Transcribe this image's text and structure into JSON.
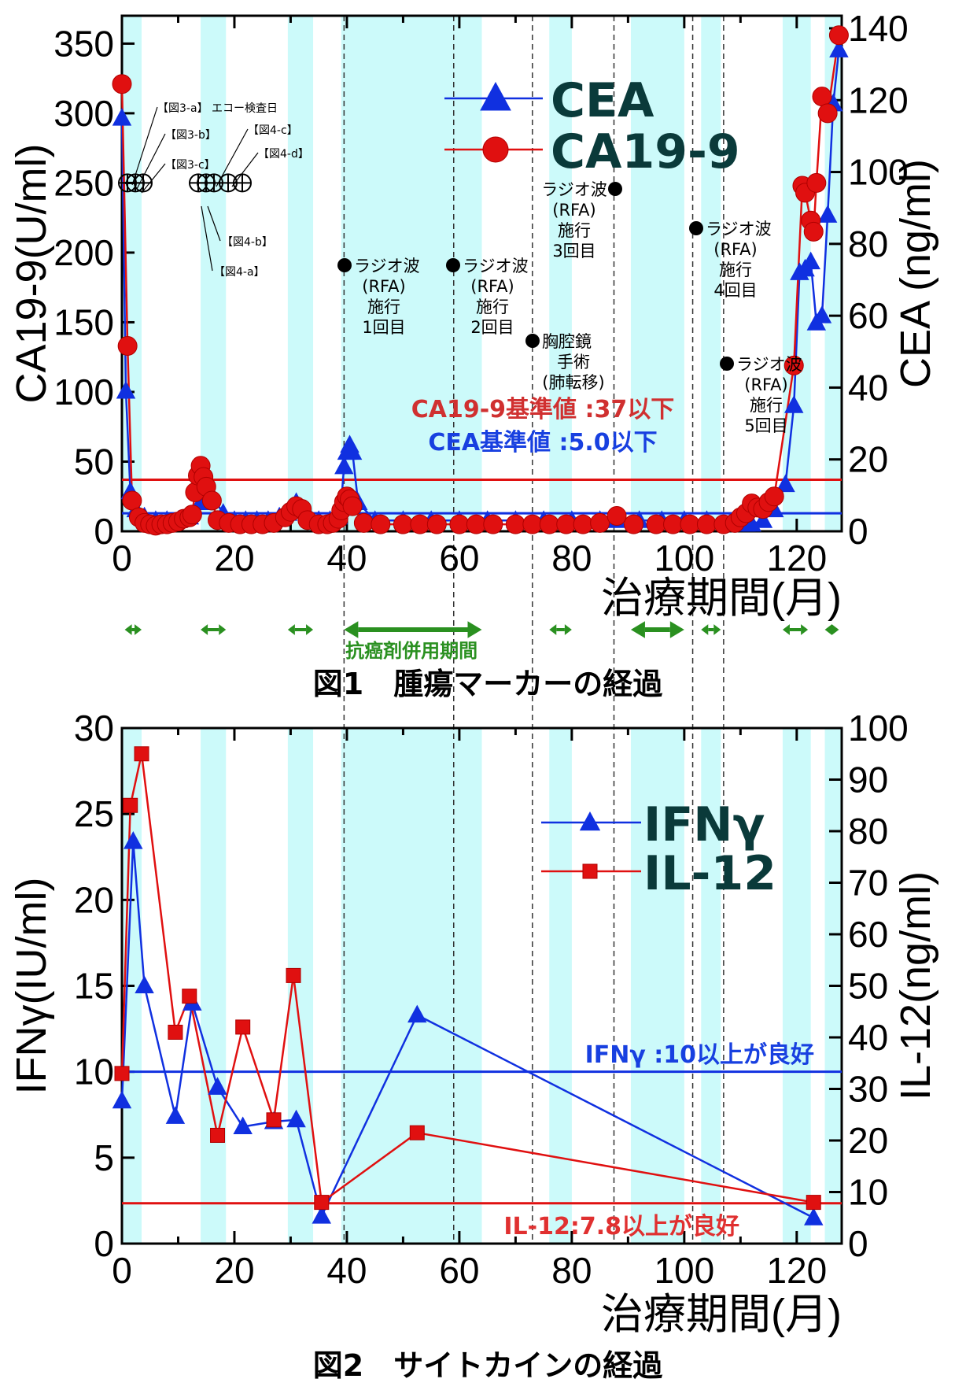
{
  "chart_data": [
    {
      "type": "line",
      "title": "図1　腫瘍マーカーの経過",
      "xlabel": "治療期間(月)",
      "ylabel_left": "CA19-9(U/ml)",
      "ylabel_right": "CEA (ng/ml)",
      "xlim": [
        0,
        128
      ],
      "ylim_left": [
        0,
        370
      ],
      "ylim_right": [
        0,
        143.5
      ],
      "x_ticks": [
        0,
        20,
        40,
        60,
        80,
        100,
        120
      ],
      "y_left_ticks": [
        0,
        50,
        100,
        150,
        200,
        250,
        300,
        350
      ],
      "y_right_ticks": [
        0,
        20,
        40,
        60,
        80,
        100,
        120,
        140
      ],
      "legend": [
        "CEA",
        "CA19-9"
      ],
      "series": [
        {
          "name": "CEA",
          "axis": "right",
          "color": "#1030e0",
          "marker": "triangle",
          "x": [
            0,
            0.7,
            1.5,
            2.5,
            4,
            6,
            8,
            10,
            12,
            14,
            15,
            16,
            18,
            20,
            22,
            24,
            26,
            28,
            29.5,
            31,
            33,
            35,
            37,
            38.5,
            39,
            39.5,
            40,
            40.5,
            41,
            42,
            45,
            50,
            55,
            60,
            65,
            70,
            75,
            80,
            85,
            88,
            92,
            96,
            100,
            104,
            108,
            111,
            112,
            114,
            116,
            118,
            119.5,
            120.5,
            121.5,
            122.5,
            123.5,
            124.5,
            125.5,
            126.5,
            127.5
          ],
          "y": [
            115,
            39,
            11,
            6,
            4,
            3,
            3,
            3,
            4,
            8,
            11,
            10,
            5,
            3,
            3,
            3,
            3,
            4,
            5,
            8,
            5,
            3,
            3,
            4,
            8,
            18,
            22,
            24,
            22,
            8,
            3,
            3,
            3,
            3,
            3,
            3,
            3,
            3,
            3,
            3,
            3,
            3,
            3,
            3,
            2,
            2,
            2,
            3,
            6,
            13,
            35,
            72,
            73,
            75,
            58,
            60,
            88,
            119,
            134
          ]
        },
        {
          "name": "CA19-9",
          "axis": "left",
          "color": "#e01010",
          "marker": "circle",
          "x": [
            0,
            1,
            1.8,
            3,
            4,
            5,
            6,
            7,
            8,
            9,
            10,
            11,
            12,
            12.5,
            13,
            13.5,
            14,
            14.5,
            15,
            16,
            17,
            19,
            21,
            23,
            25,
            27,
            29,
            30,
            31,
            32,
            33,
            35,
            36.5,
            37.5,
            38.5,
            39,
            39.5,
            40,
            40.5,
            41,
            43,
            46,
            50,
            53,
            56,
            60,
            63,
            66,
            70,
            73,
            76,
            79,
            82,
            85,
            88,
            91,
            95,
            98,
            101,
            104,
            107,
            109,
            110,
            111,
            112,
            113,
            114,
            115,
            116,
            119.5,
            121,
            121.5,
            122.5,
            123,
            123.5,
            124.5,
            125.5,
            127.5
          ],
          "y": [
            321,
            133,
            22,
            10,
            6,
            5,
            4,
            5,
            5,
            6,
            7,
            9,
            10,
            12,
            28,
            40,
            47,
            39,
            32,
            22,
            8,
            6,
            5,
            5,
            5,
            6,
            10,
            14,
            18,
            16,
            8,
            5,
            5,
            6,
            9,
            15,
            21,
            25,
            23,
            18,
            6,
            5,
            5,
            5,
            5,
            5,
            5,
            5,
            5,
            5,
            5,
            5,
            5,
            6,
            11,
            5,
            5,
            5,
            5,
            5,
            5,
            6,
            10,
            13,
            20,
            17,
            16,
            21,
            25,
            119,
            248,
            243,
            223,
            215,
            250,
            312,
            300,
            356
          ]
        }
      ],
      "reference_lines": [
        {
          "label": "CA19-9基準値 :37以下",
          "axis": "left",
          "value": 37,
          "color": "#e01010"
        },
        {
          "label": "CEA基準値 :5.0以下",
          "axis": "right",
          "value": 5,
          "color": "#1030e0"
        }
      ],
      "events": [
        {
          "x": 40,
          "label_lines": [
            "ラジオ波",
            "(RFA)",
            "施行",
            "1回目"
          ]
        },
        {
          "x": 59,
          "label_lines": [
            "ラジオ波",
            "(RFA)",
            "施行",
            "2回目"
          ]
        },
        {
          "x": 73,
          "label_lines": [
            "胸腔鏡",
            "手術",
            "(肺転移)"
          ]
        },
        {
          "x": 87.5,
          "label_lines": [
            "ラジオ波",
            "(RFA)",
            "施行",
            "3回目"
          ]
        },
        {
          "x": 102,
          "label_lines": [
            "ラジオ波",
            "(RFA)",
            "施行",
            "4回目"
          ]
        },
        {
          "x": 107.5,
          "label_lines": [
            "ラジオ波",
            "(RFA)",
            "施行",
            "5回目"
          ]
        }
      ],
      "echo_labels": [
        "【図3-a】 エコー検査日",
        "【図3-b】",
        "【図3-c】",
        "【図4-c】",
        "【図4-d】",
        "【図4-b】",
        "【図4-a】"
      ],
      "treatment_period_label": "抗癌剤併用期間"
    },
    {
      "type": "line",
      "title": "図2　サイトカインの経過",
      "xlabel": "治療期間(月)",
      "ylabel_left": "IFNγ(IU/ml)",
      "ylabel_right": "IL-12(ng/ml)",
      "xlim": [
        0,
        128
      ],
      "ylim_left": [
        0,
        30
      ],
      "ylim_right": [
        0,
        100
      ],
      "x_ticks": [
        0,
        20,
        40,
        60,
        80,
        100,
        120
      ],
      "y_left_ticks": [
        0,
        5,
        10,
        15,
        20,
        25,
        30
      ],
      "y_right_ticks": [
        0,
        10,
        20,
        30,
        40,
        50,
        60,
        70,
        80,
        90,
        100
      ],
      "legend": [
        "IFNγ",
        "IL-12"
      ],
      "series": [
        {
          "name": "IFNγ",
          "axis": "left",
          "color": "#1030e0",
          "marker": "triangle",
          "x": [
            0,
            2,
            4,
            9.5,
            12.5,
            17,
            21.5,
            27,
            31,
            35.5,
            52.5,
            123
          ],
          "y": [
            8.3,
            23.4,
            15,
            7.4,
            14,
            9.1,
            6.8,
            7.1,
            7.2,
            1.6,
            13.3,
            1.5
          ]
        },
        {
          "name": "IL-12",
          "axis": "right",
          "color": "#e01010",
          "marker": "square",
          "x": [
            0,
            1.5,
            3.5,
            9.5,
            12,
            17,
            21.5,
            27,
            30.5,
            35.5,
            52.5,
            123
          ],
          "y": [
            33,
            85,
            95,
            41,
            48,
            21,
            42,
            24,
            52,
            8,
            21.5,
            8
          ]
        }
      ],
      "reference_lines": [
        {
          "label": "IFNγ :10以上が良好",
          "axis": "left",
          "value": 10,
          "color": "#1030e0"
        },
        {
          "label": "IL-12:7.8以上が良好",
          "axis": "left",
          "value": 2.35,
          "color": "#e01010"
        }
      ]
    }
  ]
}
